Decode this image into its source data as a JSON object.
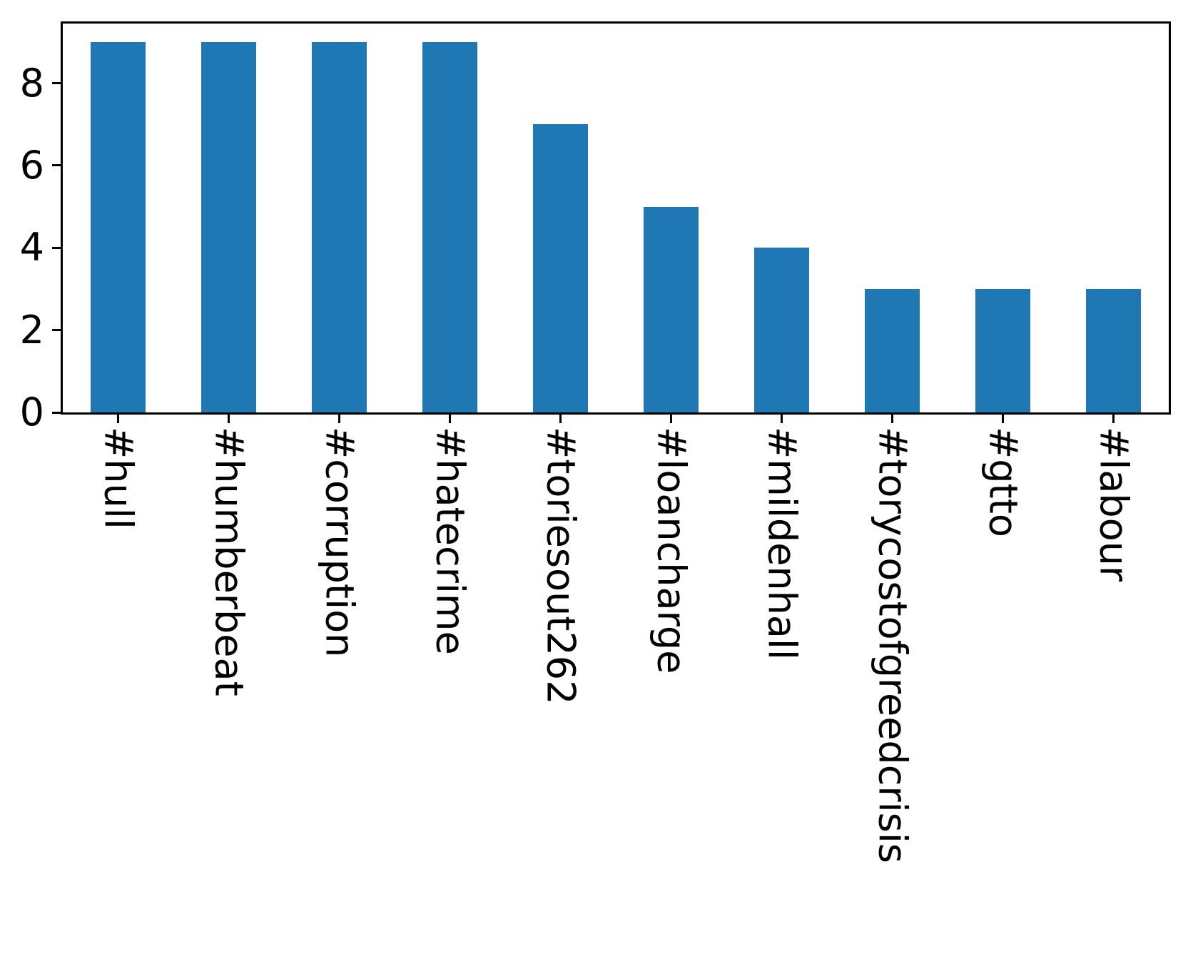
{
  "chart_data": {
    "type": "bar",
    "categories": [
      "#hull",
      "#humberbeat",
      "#corruption",
      "#hatecrime",
      "#toriesout262",
      "#loancharge",
      "#mildenhall",
      "#torycostofgreedcrisis",
      "#gtto",
      "#labour"
    ],
    "values": [
      9,
      9,
      9,
      9,
      7,
      5,
      4,
      3,
      3,
      3
    ],
    "title": "",
    "xlabel": "",
    "ylabel": "",
    "ylim": [
      0,
      9.45
    ],
    "yticks": [
      0,
      2,
      4,
      6,
      8
    ],
    "bar_color": "#1f77b4",
    "axis_color": "#000000",
    "grid": false,
    "legend_position": "none"
  }
}
